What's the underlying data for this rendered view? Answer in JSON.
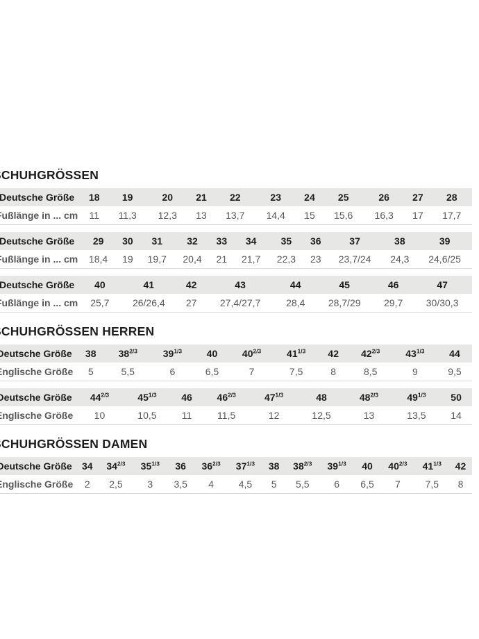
{
  "page": {
    "background": "#ffffff"
  },
  "styles": {
    "header_bar_color": "#e7e7e6",
    "header_text_color": "#1d1d1b",
    "value_text_color": "#575756",
    "divider_color": "#d8d8d8"
  },
  "tables": [
    {
      "title": "SCHUHGRÖSSEN",
      "size_label": "Deutsche Größe",
      "value_label": "Fußlänge in ... cm",
      "blocks": [
        {
          "sizes": [
            {
              "b": "18"
            },
            {
              "b": "19"
            },
            {
              "b": "20"
            },
            {
              "b": "21"
            },
            {
              "b": "22"
            },
            {
              "b": "23"
            },
            {
              "b": "24"
            },
            {
              "b": "25"
            },
            {
              "b": "26"
            },
            {
              "b": "27"
            },
            {
              "b": "28"
            }
          ],
          "values": [
            "11",
            "11,3",
            "12,3",
            "13",
            "13,7",
            "14,4",
            "15",
            "15,6",
            "16,3",
            "17",
            "17,7"
          ]
        },
        {
          "sizes": [
            {
              "b": "29"
            },
            {
              "b": "30"
            },
            {
              "b": "31"
            },
            {
              "b": "32"
            },
            {
              "b": "33"
            },
            {
              "b": "34"
            },
            {
              "b": "35"
            },
            {
              "b": "36"
            },
            {
              "b": "37"
            },
            {
              "b": "38"
            },
            {
              "b": "39"
            }
          ],
          "values": [
            "18,4",
            "19",
            "19,7",
            "20,4",
            "21",
            "21,7",
            "22,3",
            "23",
            "23,7/24",
            "24,3",
            "24,6/25"
          ]
        },
        {
          "sizes": [
            {
              "b": "40"
            },
            {
              "b": "41"
            },
            {
              "b": "42"
            },
            {
              "b": "43"
            },
            {
              "b": "44"
            },
            {
              "b": "45"
            },
            {
              "b": "46"
            },
            {
              "b": "47"
            }
          ],
          "values": [
            "25,7",
            "26/26,4",
            "27",
            "27,4/27,7",
            "28,4",
            "28,7/29",
            "29,7",
            "30/30,3"
          ]
        }
      ]
    },
    {
      "title": "SCHUHGRÖSSEN HERREN",
      "size_label": "Deutsche Größe",
      "value_label": "Englische Größe",
      "blocks": [
        {
          "sizes": [
            {
              "b": "38"
            },
            {
              "b": "38",
              "s": "2/3"
            },
            {
              "b": "39",
              "s": "1/3"
            },
            {
              "b": "40"
            },
            {
              "b": "40",
              "s": "2/3"
            },
            {
              "b": "41",
              "s": "1/3"
            },
            {
              "b": "42"
            },
            {
              "b": "42",
              "s": "2/3"
            },
            {
              "b": "43",
              "s": "1/3"
            },
            {
              "b": "44"
            }
          ],
          "values": [
            "5",
            "5,5",
            "6",
            "6,5",
            "7",
            "7,5",
            "8",
            "8,5",
            "9",
            "9,5"
          ]
        },
        {
          "sizes": [
            {
              "b": "44",
              "s": "2/3"
            },
            {
              "b": "45",
              "s": "1/3"
            },
            {
              "b": "46"
            },
            {
              "b": "46",
              "s": "2/3"
            },
            {
              "b": "47",
              "s": "1/3"
            },
            {
              "b": "48"
            },
            {
              "b": "48",
              "s": "2/3"
            },
            {
              "b": "49",
              "s": "1/3"
            },
            {
              "b": "50"
            }
          ],
          "values": [
            "10",
            "10,5",
            "11",
            "11,5",
            "12",
            "12,5",
            "13",
            "13,5",
            "14"
          ]
        }
      ]
    },
    {
      "title": "SCHUHGRÖSSEN DAMEN",
      "size_label": "Deutsche Größe",
      "value_label": "Englische Größe",
      "blocks": [
        {
          "sizes": [
            {
              "b": "34"
            },
            {
              "b": "34",
              "s": "2/3"
            },
            {
              "b": "35",
              "s": "1/3"
            },
            {
              "b": "36"
            },
            {
              "b": "36",
              "s": "2/3"
            },
            {
              "b": "37",
              "s": "1/3"
            },
            {
              "b": "38"
            },
            {
              "b": "38",
              "s": "2/3"
            },
            {
              "b": "39",
              "s": "1/3"
            },
            {
              "b": "40"
            },
            {
              "b": "40",
              "s": "2/3"
            },
            {
              "b": "41",
              "s": "1/3"
            },
            {
              "b": "42"
            }
          ],
          "values": [
            "2",
            "2,5",
            "3",
            "3,5",
            "4",
            "4,5",
            "5",
            "5,5",
            "6",
            "6,5",
            "7",
            "7,5",
            "8"
          ]
        }
      ]
    }
  ]
}
